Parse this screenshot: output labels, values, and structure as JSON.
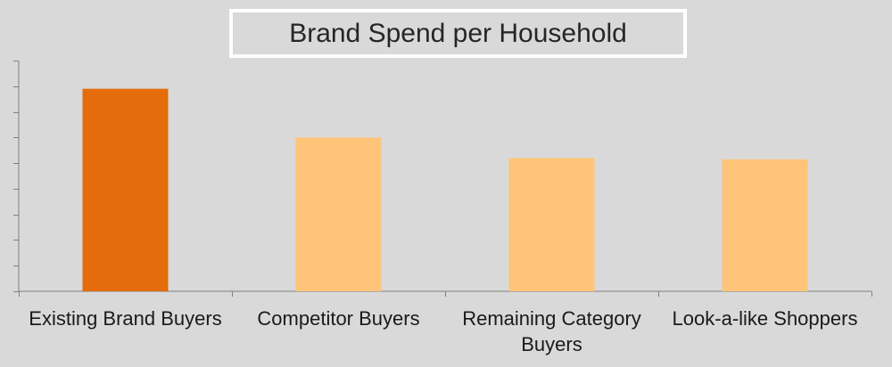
{
  "chart_data": {
    "type": "bar",
    "title": "Brand Spend per Household",
    "xlabel": "",
    "ylabel": "",
    "categories": [
      "Existing Brand Buyers",
      "Competitor Buyers",
      "Remaining Category Buyers",
      "Look-a-like Shoppers"
    ],
    "values": [
      7.9,
      6.0,
      5.2,
      5.15
    ],
    "ylim": [
      0,
      9
    ],
    "y_tick_labels": false,
    "grid": false,
    "legend": "none",
    "colors": [
      "#e46c0a",
      "#fec47a",
      "#fec47a",
      "#fec47a"
    ]
  }
}
